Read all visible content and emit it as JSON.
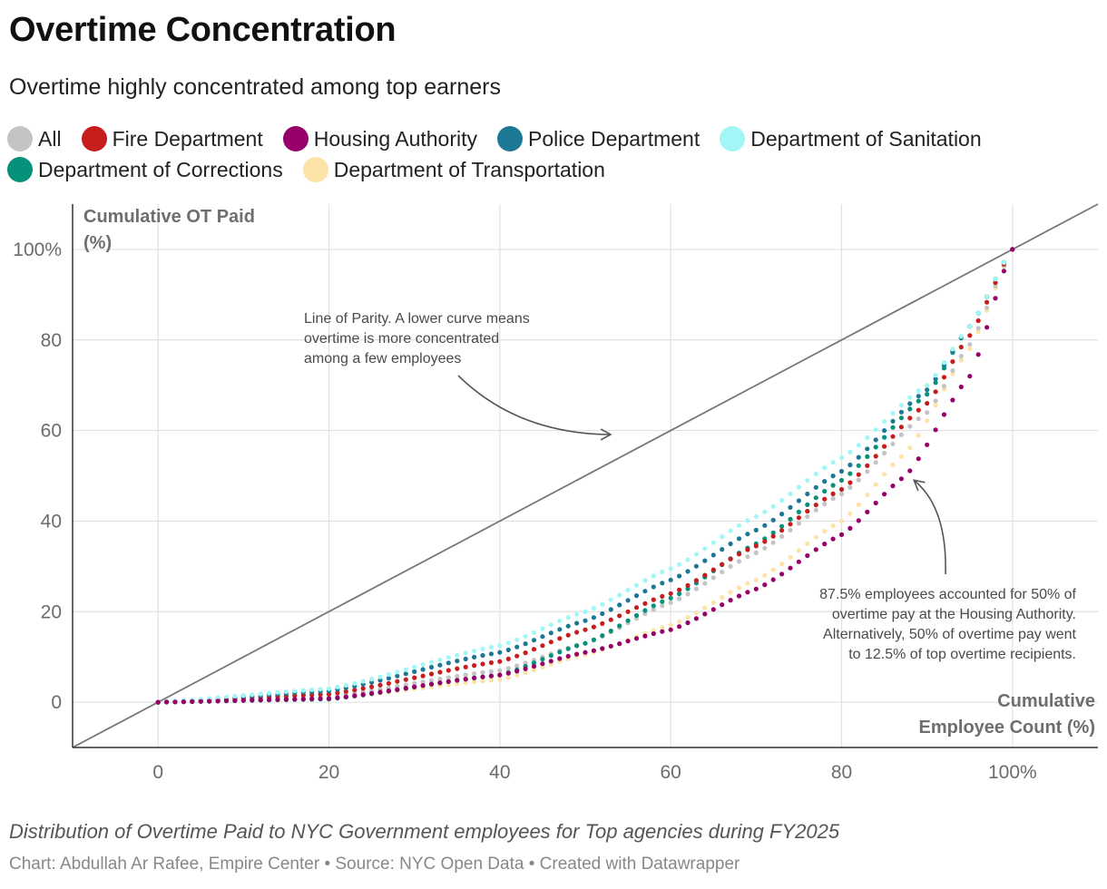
{
  "header": {
    "title": "Overtime Concentration",
    "subtitle": "Overtime highly concentrated among top earners"
  },
  "legend": {
    "rows": [
      [
        {
          "label": "All",
          "color": "#c4c4c4"
        },
        {
          "label": "Fire Department",
          "color": "#c71e1d"
        },
        {
          "label": "Housing Authority",
          "color": "#970069"
        },
        {
          "label": "Police Department",
          "color": "#1d7896"
        },
        {
          "label": "Department of Sanitation",
          "color": "#a2f7f6"
        }
      ],
      [
        {
          "label": "Department of Corrections",
          "color": "#05917a"
        },
        {
          "label": "Department of Transportation",
          "color": "#fee3a8"
        }
      ]
    ]
  },
  "chart_data": {
    "type": "scatter",
    "title": "Overtime Concentration",
    "xlabel": "Cumulative Employee Count (%)",
    "ylabel": "Cumulative OT Paid (%)",
    "xlim": [
      -10,
      110
    ],
    "ylim": [
      -10,
      110
    ],
    "x_ticks": [
      "0",
      "20",
      "40",
      "60",
      "80",
      "100%"
    ],
    "y_ticks": [
      "0",
      "20",
      "40",
      "60",
      "80",
      "100%"
    ],
    "x_tick_values": [
      0,
      20,
      40,
      60,
      80,
      100
    ],
    "y_tick_values": [
      0,
      20,
      40,
      60,
      80,
      100
    ],
    "x_axis_title": [
      "Cumulative",
      "Employee Count (%)"
    ],
    "y_axis_title": [
      "Cumulative OT Paid",
      "(%)"
    ],
    "grid": true,
    "parity_line": {
      "x": [
        -10,
        110
      ],
      "y": [
        -10,
        110
      ]
    },
    "curve_points_per_series": 101,
    "series": [
      {
        "name": "Department of Transportation",
        "color": "#fee3a8",
        "points": [
          [
            0,
            0
          ],
          [
            20,
            0.8
          ],
          [
            40,
            5
          ],
          [
            50,
            10.5
          ],
          [
            60,
            17
          ],
          [
            70,
            27
          ],
          [
            80,
            40
          ],
          [
            87.5,
            55
          ],
          [
            95,
            78
          ],
          [
            100,
            100
          ]
        ]
      },
      {
        "name": "All",
        "color": "#c4c4c4",
        "points": [
          [
            0,
            0
          ],
          [
            20,
            1.3
          ],
          [
            40,
            7
          ],
          [
            50,
            13
          ],
          [
            60,
            22
          ],
          [
            70,
            33
          ],
          [
            80,
            46
          ],
          [
            90,
            64
          ],
          [
            95,
            79
          ],
          [
            100,
            100
          ]
        ]
      },
      {
        "name": "Department of Corrections",
        "color": "#05917a",
        "points": [
          [
            0,
            0
          ],
          [
            20,
            0.7
          ],
          [
            40,
            6
          ],
          [
            50,
            13
          ],
          [
            60,
            23
          ],
          [
            70,
            35
          ],
          [
            80,
            49
          ],
          [
            90,
            68
          ],
          [
            95,
            83
          ],
          [
            100,
            100
          ]
        ]
      },
      {
        "name": "Fire Department",
        "color": "#c71e1d",
        "points": [
          [
            0,
            0
          ],
          [
            20,
            1.8
          ],
          [
            40,
            9
          ],
          [
            50,
            16
          ],
          [
            60,
            24
          ],
          [
            70,
            34.5
          ],
          [
            80,
            47
          ],
          [
            90,
            66
          ],
          [
            95,
            81
          ],
          [
            100,
            100
          ]
        ]
      },
      {
        "name": "Police Department",
        "color": "#1d7896",
        "points": [
          [
            0,
            0
          ],
          [
            20,
            2.5
          ],
          [
            40,
            11
          ],
          [
            50,
            18
          ],
          [
            60,
            27
          ],
          [
            70,
            38
          ],
          [
            80,
            51
          ],
          [
            90,
            69
          ],
          [
            95,
            83
          ],
          [
            100,
            100
          ]
        ]
      },
      {
        "name": "Department of Sanitation",
        "color": "#a2f7f6",
        "points": [
          [
            0,
            0
          ],
          [
            20,
            3
          ],
          [
            40,
            12.5
          ],
          [
            50,
            20
          ],
          [
            60,
            29.5
          ],
          [
            70,
            41
          ],
          [
            80,
            54
          ],
          [
            90,
            70
          ],
          [
            95,
            83
          ],
          [
            100,
            100
          ]
        ]
      },
      {
        "name": "Housing Authority",
        "color": "#970069",
        "points": [
          [
            0,
            0
          ],
          [
            20,
            0.8
          ],
          [
            40,
            6
          ],
          [
            50,
            11
          ],
          [
            60,
            16
          ],
          [
            70,
            25
          ],
          [
            80,
            37
          ],
          [
            87.5,
            50
          ],
          [
            95,
            72
          ],
          [
            100,
            100
          ]
        ]
      }
    ],
    "annotations": [
      {
        "name": "parity-annotation",
        "lines": [
          "Line of Parity. A lower curve means",
          "overtime is more concentrated",
          "among a few employees"
        ]
      },
      {
        "name": "housing-annotation",
        "lines": [
          "87.5% employees accounted for 50% of",
          "overtime pay at the Housing Authority.",
          "Alternatively, 50% of overtime pay went",
          "to 12.5% of top overtime recipients."
        ]
      }
    ]
  },
  "footer": {
    "notes": "Distribution of Overtime Paid to NYC Government employees for Top agencies during FY2025",
    "credit": "Chart: Abdullah Ar Rafee, Empire Center • Source: NYC Open Data • Created with Datawrapper"
  }
}
